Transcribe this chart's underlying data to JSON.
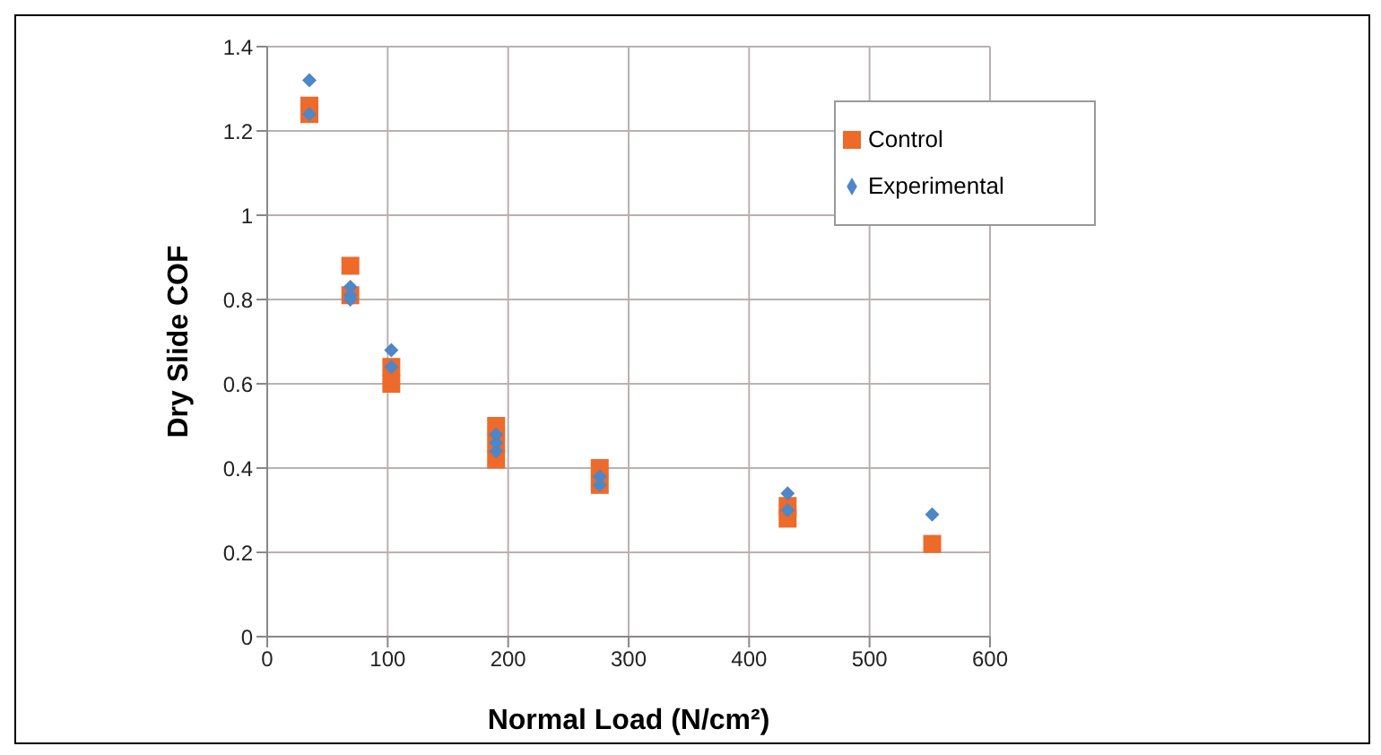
{
  "chart_data": {
    "type": "scatter",
    "xlabel": "Normal Load (N/cm²)",
    "ylabel": "Dry Slide COF",
    "xlim": [
      0,
      600
    ],
    "xticks": [
      0,
      100,
      200,
      300,
      400,
      500,
      600
    ],
    "ylim": [
      0,
      1.4
    ],
    "yticks": [
      0,
      0.2,
      0.4,
      0.6,
      0.8,
      1,
      1.2,
      1.4
    ],
    "grid": true,
    "legend": "top right",
    "series": [
      {
        "name": "Control",
        "color": "#ed6a2a",
        "marker": "square",
        "x": [
          35,
          35,
          69,
          69,
          103,
          103,
          190,
          190,
          190,
          276,
          276,
          432,
          432,
          552
        ],
        "values": [
          1.26,
          1.24,
          0.88,
          0.81,
          0.64,
          0.6,
          0.5,
          0.46,
          0.42,
          0.4,
          0.36,
          0.31,
          0.28,
          0.22
        ]
      },
      {
        "name": "Experimental",
        "color": "#4f86c6",
        "marker": "diamond",
        "x": [
          35,
          35,
          69,
          69,
          69,
          103,
          103,
          190,
          190,
          190,
          276,
          276,
          432,
          432,
          552
        ],
        "values": [
          1.32,
          1.24,
          0.83,
          0.81,
          0.8,
          0.68,
          0.64,
          0.48,
          0.46,
          0.44,
          0.38,
          0.36,
          0.34,
          0.3,
          0.29
        ]
      }
    ]
  }
}
